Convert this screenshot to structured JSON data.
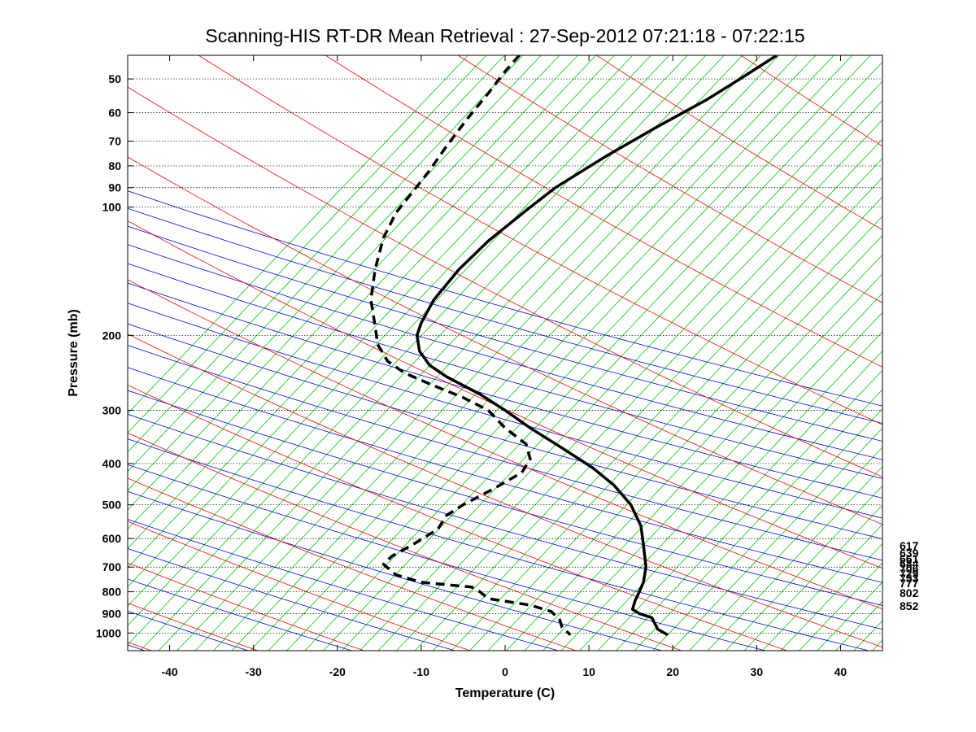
{
  "chart_data": {
    "type": "line",
    "title": "Scanning-HIS RT-DR Mean Retrieval : 27-Sep-2012 07:21:18 - 07:22:15",
    "xlabel": "Temperature (C)",
    "ylabel": "Pressure (mb)",
    "xlim": [
      -45,
      45
    ],
    "ylim": [
      1100,
      44
    ],
    "y_scale": "log",
    "x_ticks": [
      -40,
      -30,
      -20,
      -10,
      0,
      10,
      20,
      30,
      40
    ],
    "x_tick_labels": [
      "-40",
      "-30",
      "-20",
      "-10",
      "0",
      "10",
      "20",
      "30",
      "40"
    ],
    "y_ticks": [
      50,
      60,
      70,
      80,
      90,
      100,
      200,
      300,
      400,
      500,
      600,
      700,
      800,
      900,
      1000
    ],
    "y_tick_labels": [
      "50",
      "60",
      "70",
      "80",
      "90",
      "100",
      "200",
      "300",
      "400",
      "500",
      "600",
      "700",
      "800",
      "900",
      "1000"
    ],
    "grid": "horizontal dotted at y ticks",
    "background_lines": {
      "dry_adiabats_color": "#0000ff",
      "moist_adiabats_color": "#ff0000",
      "mixing_ratio_color": "#00cc00"
    },
    "right_labels": [
      "617",
      "639",
      "661",
      "684",
      "706",
      "729",
      "753",
      "777",
      "802",
      "852"
    ],
    "series": [
      {
        "style": "solid",
        "color": "#000000",
        "points": [
          {
            "t": 32.4,
            "p": 44
          },
          {
            "t": 28.0,
            "p": 50
          },
          {
            "t": 24.0,
            "p": 56
          },
          {
            "t": 18.0,
            "p": 65
          },
          {
            "t": 12.0,
            "p": 76
          },
          {
            "t": 6.0,
            "p": 90
          },
          {
            "t": 3.0,
            "p": 100
          },
          {
            "t": -2.0,
            "p": 120
          },
          {
            "t": -5.5,
            "p": 140
          },
          {
            "t": -8.5,
            "p": 165
          },
          {
            "t": -10.0,
            "p": 187
          },
          {
            "t": -10.5,
            "p": 200
          },
          {
            "t": -10.2,
            "p": 218
          },
          {
            "t": -9.0,
            "p": 235
          },
          {
            "t": -7.0,
            "p": 250
          },
          {
            "t": -3.0,
            "p": 275
          },
          {
            "t": 0.0,
            "p": 300
          },
          {
            "t": 3.0,
            "p": 330
          },
          {
            "t": 7.0,
            "p": 370
          },
          {
            "t": 10.5,
            "p": 410
          },
          {
            "t": 13.0,
            "p": 450
          },
          {
            "t": 15.0,
            "p": 500
          },
          {
            "t": 16.2,
            "p": 560
          },
          {
            "t": 16.5,
            "p": 620
          },
          {
            "t": 16.8,
            "p": 700
          },
          {
            "t": 16.5,
            "p": 760
          },
          {
            "t": 16.0,
            "p": 800
          },
          {
            "t": 15.5,
            "p": 840
          },
          {
            "t": 15.2,
            "p": 880
          },
          {
            "t": 16.0,
            "p": 900
          },
          {
            "t": 17.5,
            "p": 920
          },
          {
            "t": 18.2,
            "p": 980
          },
          {
            "t": 19.4,
            "p": 1010
          }
        ]
      },
      {
        "style": "dashed",
        "color": "#000000",
        "points": [
          {
            "t": 1.7,
            "p": 44
          },
          {
            "t": 0.0,
            "p": 48
          },
          {
            "t": -2.0,
            "p": 54
          },
          {
            "t": -4.5,
            "p": 62
          },
          {
            "t": -7.0,
            "p": 72
          },
          {
            "t": -9.0,
            "p": 82
          },
          {
            "t": -11.0,
            "p": 92
          },
          {
            "t": -13.0,
            "p": 103
          },
          {
            "t": -14.5,
            "p": 118
          },
          {
            "t": -15.5,
            "p": 140
          },
          {
            "t": -16.0,
            "p": 165
          },
          {
            "t": -15.5,
            "p": 190
          },
          {
            "t": -15.2,
            "p": 210
          },
          {
            "t": -14.0,
            "p": 230
          },
          {
            "t": -12.0,
            "p": 245
          },
          {
            "t": -9.0,
            "p": 260
          },
          {
            "t": -5.0,
            "p": 280
          },
          {
            "t": -2.0,
            "p": 300
          },
          {
            "t": 0.0,
            "p": 330
          },
          {
            "t": 2.5,
            "p": 360
          },
          {
            "t": 3.0,
            "p": 390
          },
          {
            "t": 2.0,
            "p": 420
          },
          {
            "t": -1.5,
            "p": 460
          },
          {
            "t": -5.0,
            "p": 500
          },
          {
            "t": -7.0,
            "p": 530
          },
          {
            "t": -8.0,
            "p": 570
          },
          {
            "t": -11.0,
            "p": 620
          },
          {
            "t": -13.5,
            "p": 660
          },
          {
            "t": -14.5,
            "p": 690
          },
          {
            "t": -13.0,
            "p": 730
          },
          {
            "t": -10.0,
            "p": 760
          },
          {
            "t": -4.0,
            "p": 780
          },
          {
            "t": -3.0,
            "p": 800
          },
          {
            "t": -2.0,
            "p": 830
          },
          {
            "t": 3.0,
            "p": 860
          },
          {
            "t": 5.5,
            "p": 890
          },
          {
            "t": 6.5,
            "p": 930
          },
          {
            "t": 6.8,
            "p": 970
          },
          {
            "t": 7.8,
            "p": 1010
          }
        ]
      }
    ]
  }
}
